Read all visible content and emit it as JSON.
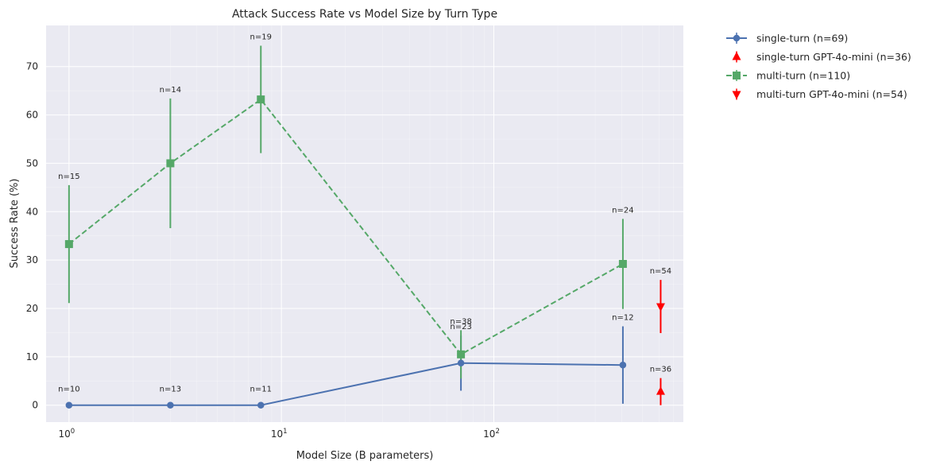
{
  "chart_data": {
    "type": "line",
    "title": "Attack Success Rate vs Model Size by Turn Type",
    "xlabel": "Model Size (B parameters)",
    "ylabel": "Success Rate (%)",
    "xscale": "log",
    "xlim": [
      0.78,
      780
    ],
    "ylim": [
      -3.5,
      78.5
    ],
    "xticks": [
      {
        "value": 1,
        "base": "10",
        "exp": "0"
      },
      {
        "value": 10,
        "base": "10",
        "exp": "1"
      },
      {
        "value": 100,
        "base": "10",
        "exp": "2"
      }
    ],
    "yticks": [
      0,
      10,
      20,
      30,
      40,
      50,
      60,
      70
    ],
    "grid": true,
    "legend_position": "outside-top-right",
    "series": [
      {
        "name": "single-turn (n=69)",
        "color": "#4c72b0",
        "marker": "circle",
        "linestyle": "solid",
        "points": [
          {
            "x": 1,
            "y": 0,
            "err": 0,
            "label": "n=10"
          },
          {
            "x": 3,
            "y": 0,
            "err": 0,
            "label": "n=13"
          },
          {
            "x": 8,
            "y": 0,
            "err": 0,
            "label": "n=11"
          },
          {
            "x": 70,
            "y": 8.7,
            "err": 5.7,
            "label": "n=23"
          },
          {
            "x": 405,
            "y": 8.3,
            "err": 8.0,
            "label": "n=12"
          }
        ]
      },
      {
        "name": "single-turn GPT-4o-mini (n=36)",
        "color": "#ff0000",
        "marker": "triangle-up",
        "linestyle": "none",
        "points": [
          {
            "x": 610,
            "y": 2.8,
            "err": 2.8,
            "label": "n=36"
          }
        ]
      },
      {
        "name": "multi-turn (n=110)",
        "color": "#55a868",
        "marker": "square",
        "linestyle": "dashed",
        "points": [
          {
            "x": 1,
            "y": 33.3,
            "err": 12.2,
            "label": "n=15"
          },
          {
            "x": 3,
            "y": 50.0,
            "err": 13.4,
            "label": "n=14"
          },
          {
            "x": 8,
            "y": 63.2,
            "err": 11.1,
            "label": "n=19"
          },
          {
            "x": 70,
            "y": 10.5,
            "err": 5.0,
            "label": "n=38"
          },
          {
            "x": 405,
            "y": 29.2,
            "err": 9.3,
            "label": "n=24"
          }
        ]
      },
      {
        "name": "multi-turn GPT-4o-mini (n=54)",
        "color": "#ff0000",
        "marker": "triangle-down",
        "linestyle": "none",
        "points": [
          {
            "x": 610,
            "y": 20.4,
            "err": 5.5,
            "label": "n=54"
          }
        ]
      }
    ]
  }
}
